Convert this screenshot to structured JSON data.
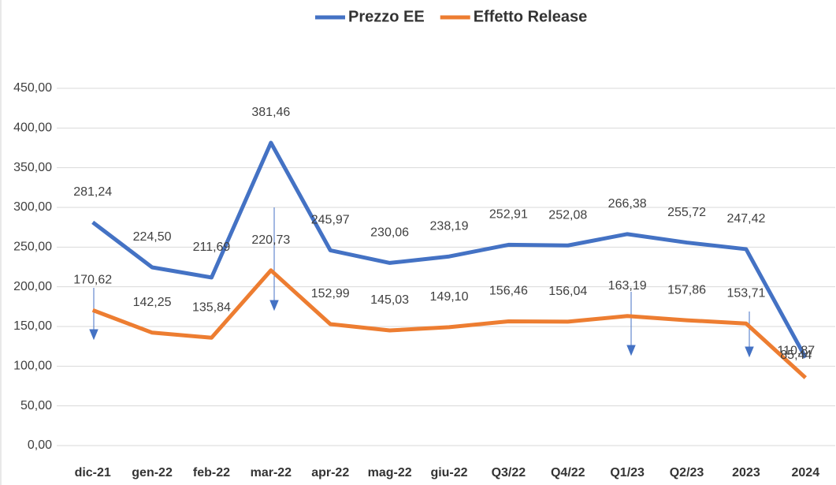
{
  "chart_data": {
    "type": "line",
    "categories": [
      "dic-21",
      "gen-22",
      "feb-22",
      "mar-22",
      "apr-22",
      "mag-22",
      "giu-22",
      "Q3/22",
      "Q4/22",
      "Q1/23",
      "Q2/23",
      "2023",
      "2024"
    ],
    "series": [
      {
        "name": "Prezzo EE",
        "color": "#4472c4",
        "values": [
          281.24,
          224.5,
          211.69,
          381.46,
          245.97,
          230.06,
          238.19,
          252.91,
          252.08,
          266.38,
          255.72,
          247.42,
          110.87
        ],
        "value_labels": [
          "281,24",
          "224,50",
          "211,69",
          "381,46",
          "245,97",
          "230,06",
          "238,19",
          "252,91",
          "252,08",
          "266,38",
          "255,72",
          "247,42",
          "110,87"
        ]
      },
      {
        "name": "Effetto Release",
        "color": "#ed7d31",
        "values": [
          170.62,
          142.25,
          135.84,
          220.73,
          152.99,
          145.03,
          149.1,
          156.46,
          156.04,
          163.19,
          157.86,
          153.71,
          85.44
        ],
        "value_labels": [
          "170,62",
          "142,25",
          "135,84",
          "220,73",
          "152,99",
          "145,03",
          "149,10",
          "156,46",
          "156,04",
          "163,19",
          "157,86",
          "153,71",
          "85,44"
        ]
      }
    ],
    "ylim": [
      0,
      450
    ],
    "yticks": [
      {
        "value": 0,
        "label": "0,00"
      },
      {
        "value": 50,
        "label": "50,00"
      },
      {
        "value": 100,
        "label": "100,00"
      },
      {
        "value": 150,
        "label": "150,00"
      },
      {
        "value": 200,
        "label": "200,00"
      },
      {
        "value": 250,
        "label": "250,00"
      },
      {
        "value": 300,
        "label": "300,00"
      },
      {
        "value": 350,
        "label": "350,00"
      },
      {
        "value": 400,
        "label": "400,00"
      },
      {
        "value": 450,
        "label": "450,00"
      }
    ],
    "grid": true,
    "legend": "top"
  }
}
